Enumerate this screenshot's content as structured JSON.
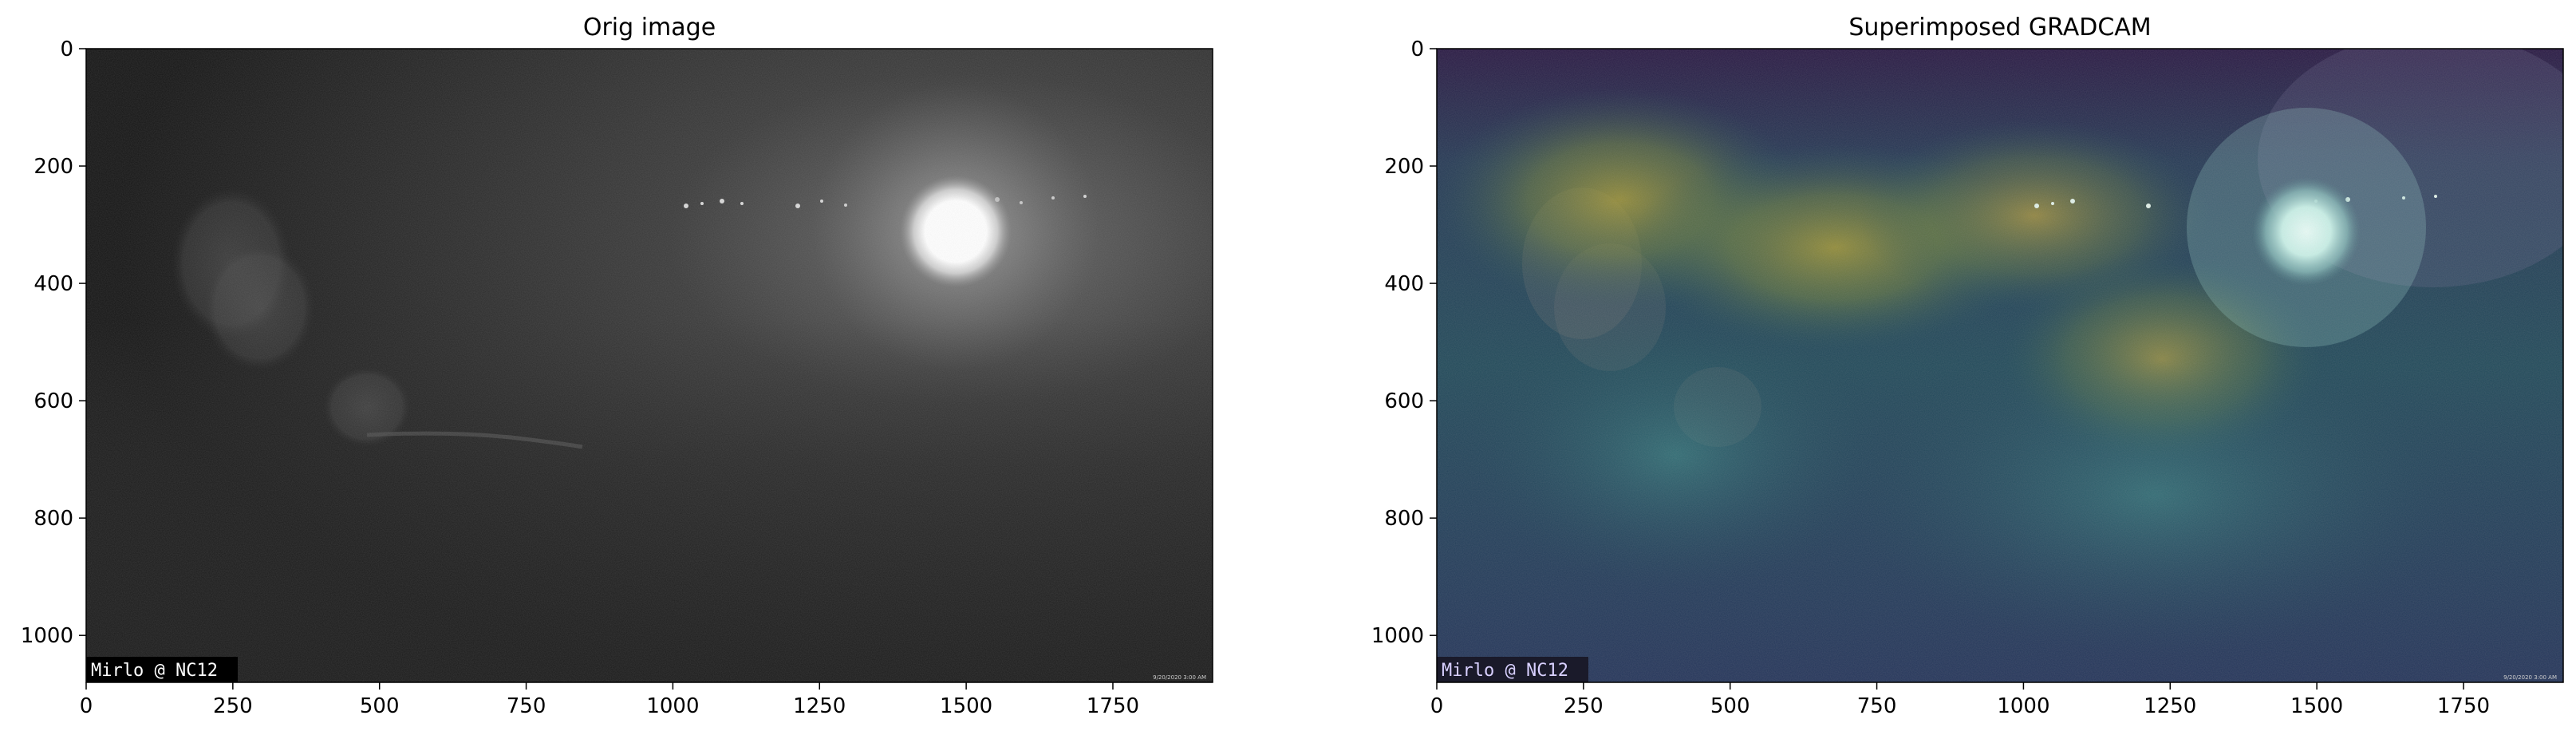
{
  "panels": [
    {
      "title": "Orig image",
      "x_ticks": [
        "0",
        "250",
        "500",
        "750",
        "1000",
        "1250",
        "1500",
        "1750"
      ],
      "y_ticks": [
        "0",
        "200",
        "400",
        "600",
        "800",
        "1000"
      ],
      "watermark": "Mirlo @ NC12",
      "timestamp": "9/20/2020 3:00 AM"
    },
    {
      "title": "Superimposed GRADCAM",
      "x_ticks": [
        "0",
        "250",
        "500",
        "750",
        "1000",
        "1250",
        "1500",
        "1750"
      ],
      "y_ticks": [
        "0",
        "200",
        "400",
        "600",
        "800",
        "1000"
      ],
      "watermark": "Mirlo @ NC12",
      "timestamp": "9/20/2020 3:00 AM"
    }
  ],
  "colors": {
    "axis": "#000000",
    "background": "#ffffff",
    "night_sky": "#1a1a1a",
    "heatmap_hot": "#c8a83a",
    "heatmap_cool": "#1a3a5a"
  }
}
